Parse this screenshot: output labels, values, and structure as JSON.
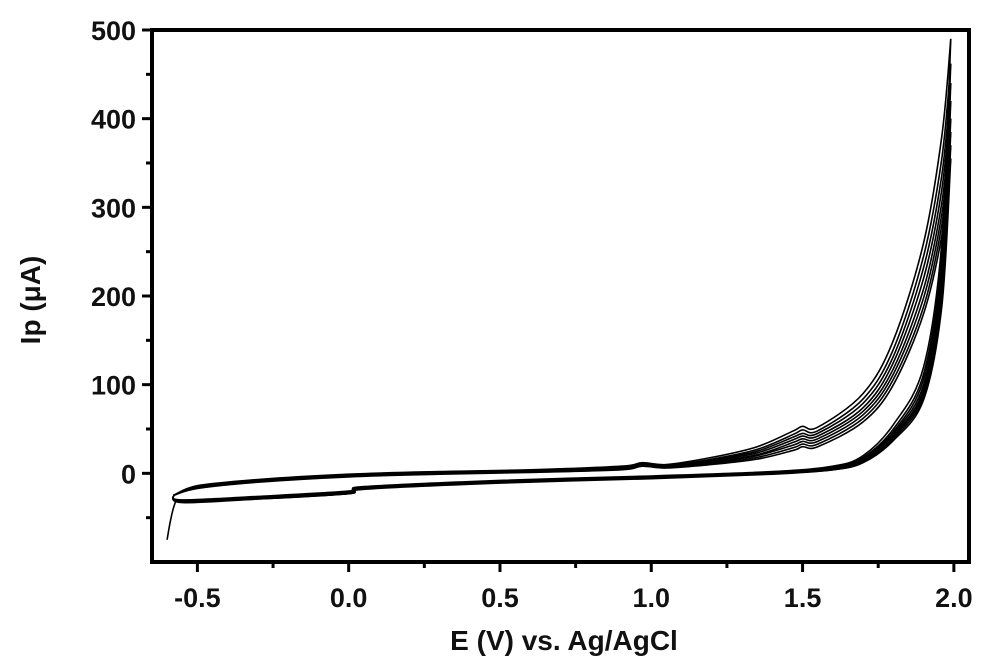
{
  "chart_data": {
    "type": "line",
    "title": "",
    "xlabel": "E (V) vs. Ag/AgCl",
    "ylabel": "Ip (μA)",
    "xlim": [
      -0.65,
      2.05
    ],
    "ylim": [
      -100,
      500
    ],
    "xticks": [
      -0.5,
      0.0,
      0.5,
      1.0,
      1.5,
      2.0
    ],
    "xtick_labels": [
      "-0.5",
      "0.0",
      "0.5",
      "1.0",
      "1.5",
      "2.0"
    ],
    "yticks": [
      0,
      100,
      200,
      300,
      400,
      500
    ],
    "ytick_labels": [
      "0",
      "100",
      "200",
      "300",
      "400",
      "500"
    ],
    "grid": false,
    "legend": "none",
    "line_color": "#000000",
    "description_of_series": "repeated cyclic voltammograms",
    "series": [
      {
        "anodic": [
          [
            -0.58,
            -25
          ],
          [
            -0.5,
            -14
          ],
          [
            -0.3,
            -7
          ],
          [
            0.0,
            -1
          ],
          [
            0.3,
            2
          ],
          [
            0.6,
            4
          ],
          [
            0.9,
            8
          ],
          [
            0.97,
            12
          ],
          [
            1.05,
            10
          ],
          [
            1.2,
            18
          ],
          [
            1.35,
            30
          ],
          [
            1.47,
            48
          ],
          [
            1.5,
            53
          ],
          [
            1.55,
            52
          ],
          [
            1.7,
            90
          ],
          [
            1.8,
            150
          ],
          [
            1.9,
            260
          ],
          [
            1.96,
            380
          ],
          [
            1.99,
            490
          ]
        ],
        "cathodic": [
          [
            1.99,
            490
          ],
          [
            1.96,
            260
          ],
          [
            1.9,
            120
          ],
          [
            1.8,
            55
          ],
          [
            1.7,
            20
          ],
          [
            1.6,
            8
          ],
          [
            1.4,
            2
          ],
          [
            1.0,
            -3
          ],
          [
            0.5,
            -8
          ],
          [
            0.05,
            -15
          ],
          [
            0.0,
            -20
          ],
          [
            -0.3,
            -26
          ],
          [
            -0.55,
            -30
          ],
          [
            -0.58,
            -25
          ]
        ]
      },
      {
        "anodic": [
          [
            -0.58,
            -25
          ],
          [
            -0.5,
            -15
          ],
          [
            -0.3,
            -8
          ],
          [
            0.0,
            -2
          ],
          [
            0.3,
            1
          ],
          [
            0.6,
            3
          ],
          [
            0.9,
            7
          ],
          [
            0.97,
            11
          ],
          [
            1.05,
            9
          ],
          [
            1.2,
            16
          ],
          [
            1.35,
            27
          ],
          [
            1.47,
            44
          ],
          [
            1.5,
            49
          ],
          [
            1.55,
            48
          ],
          [
            1.7,
            84
          ],
          [
            1.8,
            140
          ],
          [
            1.9,
            245
          ],
          [
            1.96,
            355
          ],
          [
            1.99,
            462
          ]
        ],
        "cathodic": [
          [
            1.99,
            462
          ],
          [
            1.96,
            245
          ],
          [
            1.9,
            112
          ],
          [
            1.8,
            50
          ],
          [
            1.7,
            18
          ],
          [
            1.6,
            7
          ],
          [
            1.4,
            1
          ],
          [
            1.0,
            -4
          ],
          [
            0.5,
            -9
          ],
          [
            0.05,
            -16
          ],
          [
            0.0,
            -21
          ],
          [
            -0.3,
            -27
          ],
          [
            -0.55,
            -31
          ],
          [
            -0.58,
            -25
          ]
        ]
      },
      {
        "anodic": [
          [
            -0.58,
            -25
          ],
          [
            -0.5,
            -15
          ],
          [
            -0.3,
            -8
          ],
          [
            0.0,
            -2
          ],
          [
            0.3,
            1
          ],
          [
            0.6,
            3
          ],
          [
            0.9,
            7
          ],
          [
            0.97,
            10
          ],
          [
            1.05,
            9
          ],
          [
            1.2,
            15
          ],
          [
            1.35,
            25
          ],
          [
            1.47,
            41
          ],
          [
            1.5,
            45
          ],
          [
            1.55,
            45
          ],
          [
            1.7,
            79
          ],
          [
            1.8,
            132
          ],
          [
            1.9,
            232
          ],
          [
            1.96,
            336
          ],
          [
            1.99,
            440
          ]
        ],
        "cathodic": [
          [
            1.99,
            440
          ],
          [
            1.96,
            232
          ],
          [
            1.9,
            106
          ],
          [
            1.8,
            47
          ],
          [
            1.7,
            17
          ],
          [
            1.6,
            6
          ],
          [
            1.4,
            1
          ],
          [
            1.0,
            -4
          ],
          [
            0.5,
            -9
          ],
          [
            0.05,
            -16
          ],
          [
            0.0,
            -21
          ],
          [
            -0.3,
            -27
          ],
          [
            -0.55,
            -31
          ],
          [
            -0.58,
            -25
          ]
        ]
      },
      {
        "anodic": [
          [
            -0.58,
            -25
          ],
          [
            -0.5,
            -15
          ],
          [
            -0.3,
            -8
          ],
          [
            0.0,
            -2
          ],
          [
            0.3,
            1
          ],
          [
            0.6,
            3
          ],
          [
            0.9,
            6
          ],
          [
            0.97,
            10
          ],
          [
            1.05,
            8
          ],
          [
            1.2,
            14
          ],
          [
            1.35,
            23
          ],
          [
            1.47,
            38
          ],
          [
            1.5,
            42
          ],
          [
            1.55,
            42
          ],
          [
            1.7,
            74
          ],
          [
            1.8,
            125
          ],
          [
            1.9,
            220
          ],
          [
            1.96,
            320
          ],
          [
            1.99,
            420
          ]
        ],
        "cathodic": [
          [
            1.99,
            420
          ],
          [
            1.96,
            220
          ],
          [
            1.9,
            100
          ],
          [
            1.8,
            45
          ],
          [
            1.7,
            16
          ],
          [
            1.6,
            6
          ],
          [
            1.4,
            1
          ],
          [
            1.0,
            -4
          ],
          [
            0.5,
            -9
          ],
          [
            0.05,
            -16
          ],
          [
            0.0,
            -22
          ],
          [
            -0.3,
            -28
          ],
          [
            -0.55,
            -31
          ],
          [
            -0.58,
            -25
          ]
        ]
      },
      {
        "anodic": [
          [
            -0.58,
            -25
          ],
          [
            -0.5,
            -16
          ],
          [
            -0.3,
            -9
          ],
          [
            0.0,
            -3
          ],
          [
            0.3,
            0
          ],
          [
            0.6,
            2
          ],
          [
            0.9,
            6
          ],
          [
            0.97,
            9
          ],
          [
            1.05,
            8
          ],
          [
            1.2,
            13
          ],
          [
            1.35,
            21
          ],
          [
            1.47,
            35
          ],
          [
            1.5,
            39
          ],
          [
            1.55,
            39
          ],
          [
            1.7,
            70
          ],
          [
            1.8,
            118
          ],
          [
            1.9,
            208
          ],
          [
            1.96,
            305
          ],
          [
            1.99,
            400
          ]
        ],
        "cathodic": [
          [
            1.99,
            400
          ],
          [
            1.96,
            210
          ],
          [
            1.9,
            95
          ],
          [
            1.8,
            43
          ],
          [
            1.7,
            15
          ],
          [
            1.6,
            5
          ],
          [
            1.4,
            0
          ],
          [
            1.0,
            -5
          ],
          [
            0.5,
            -10
          ],
          [
            0.05,
            -17
          ],
          [
            0.0,
            -22
          ],
          [
            -0.3,
            -28
          ],
          [
            -0.55,
            -32
          ],
          [
            -0.58,
            -25
          ]
        ]
      },
      {
        "anodic": [
          [
            -0.58,
            -25
          ],
          [
            -0.5,
            -16
          ],
          [
            -0.3,
            -9
          ],
          [
            0.0,
            -3
          ],
          [
            0.3,
            0
          ],
          [
            0.6,
            2
          ],
          [
            0.9,
            5
          ],
          [
            0.97,
            9
          ],
          [
            1.05,
            7
          ],
          [
            1.2,
            12
          ],
          [
            1.35,
            20
          ],
          [
            1.47,
            32
          ],
          [
            1.5,
            36
          ],
          [
            1.55,
            36
          ],
          [
            1.7,
            66
          ],
          [
            1.8,
            112
          ],
          [
            1.9,
            198
          ],
          [
            1.96,
            292
          ],
          [
            1.99,
            385
          ]
        ],
        "cathodic": [
          [
            1.99,
            385
          ],
          [
            1.96,
            202
          ],
          [
            1.9,
            91
          ],
          [
            1.8,
            41
          ],
          [
            1.7,
            14
          ],
          [
            1.6,
            5
          ],
          [
            1.4,
            0
          ],
          [
            1.0,
            -5
          ],
          [
            0.5,
            -10
          ],
          [
            0.05,
            -17
          ],
          [
            0.0,
            -22
          ],
          [
            -0.3,
            -28
          ],
          [
            -0.55,
            -32
          ],
          [
            -0.58,
            -25
          ]
        ]
      },
      {
        "anodic": [
          [
            -0.58,
            -25
          ],
          [
            -0.5,
            -16
          ],
          [
            -0.3,
            -9
          ],
          [
            0.0,
            -3
          ],
          [
            0.3,
            0
          ],
          [
            0.6,
            2
          ],
          [
            0.9,
            5
          ],
          [
            0.97,
            8
          ],
          [
            1.05,
            7
          ],
          [
            1.2,
            11
          ],
          [
            1.35,
            18
          ],
          [
            1.47,
            29
          ],
          [
            1.5,
            33
          ],
          [
            1.55,
            33
          ],
          [
            1.7,
            62
          ],
          [
            1.8,
            106
          ],
          [
            1.9,
            188
          ],
          [
            1.96,
            280
          ],
          [
            1.99,
            370
          ]
        ],
        "cathodic": [
          [
            1.99,
            370
          ],
          [
            1.96,
            195
          ],
          [
            1.9,
            87
          ],
          [
            1.8,
            39
          ],
          [
            1.7,
            13
          ],
          [
            1.6,
            4
          ],
          [
            1.4,
            0
          ],
          [
            1.0,
            -5
          ],
          [
            0.5,
            -10
          ],
          [
            0.05,
            -17
          ],
          [
            0.0,
            -23
          ],
          [
            -0.3,
            -29
          ],
          [
            -0.55,
            -32
          ],
          [
            -0.58,
            -25
          ]
        ]
      },
      {
        "anodic": [
          [
            -0.58,
            -25
          ],
          [
            -0.5,
            -17
          ],
          [
            -0.3,
            -10
          ],
          [
            0.0,
            -4
          ],
          [
            0.3,
            -1
          ],
          [
            0.6,
            1
          ],
          [
            0.9,
            4
          ],
          [
            0.97,
            8
          ],
          [
            1.05,
            6
          ],
          [
            1.2,
            10
          ],
          [
            1.35,
            16
          ],
          [
            1.47,
            26
          ],
          [
            1.5,
            30
          ],
          [
            1.55,
            30
          ],
          [
            1.7,
            58
          ],
          [
            1.8,
            100
          ],
          [
            1.9,
            180
          ],
          [
            1.96,
            268
          ],
          [
            1.99,
            355
          ]
        ],
        "cathodic": [
          [
            1.99,
            355
          ],
          [
            1.96,
            188
          ],
          [
            1.9,
            83
          ],
          [
            1.8,
            37
          ],
          [
            1.7,
            12
          ],
          [
            1.6,
            4
          ],
          [
            1.4,
            -1
          ],
          [
            1.0,
            -6
          ],
          [
            0.5,
            -11
          ],
          [
            0.05,
            -18
          ],
          [
            0.0,
            -23
          ],
          [
            -0.3,
            -29
          ],
          [
            -0.55,
            -33
          ],
          [
            -0.58,
            -25
          ]
        ]
      }
    ],
    "tail": [
      [
        -0.6,
        -75
      ],
      [
        -0.59,
        -55
      ],
      [
        -0.58,
        -40
      ],
      [
        -0.57,
        -30
      ]
    ]
  }
}
